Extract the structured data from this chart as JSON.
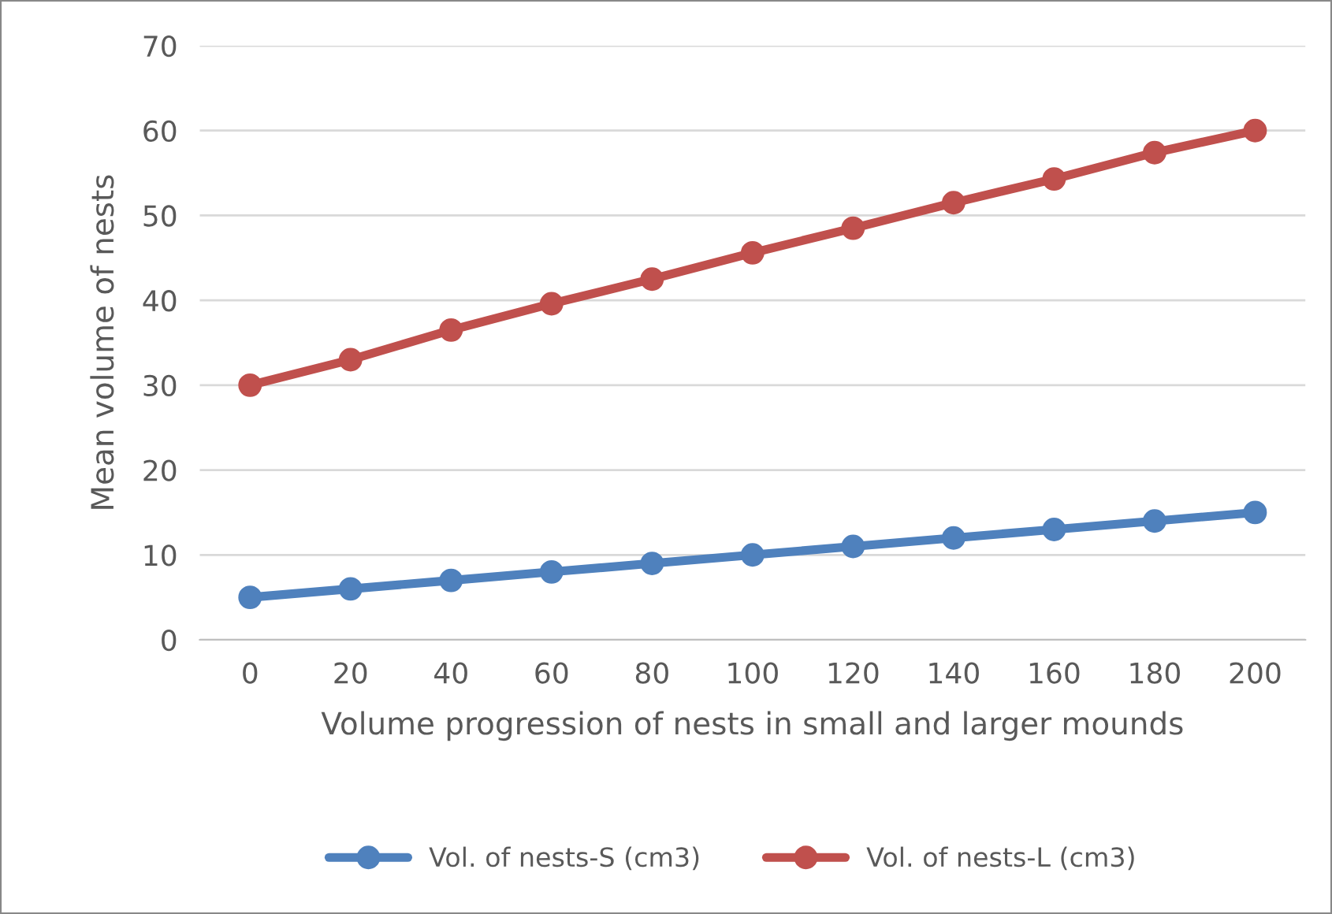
{
  "chart_data": {
    "type": "line",
    "xlabel": "Volume progression of nests in small and larger mounds",
    "ylabel": "Mean volume of nests",
    "categories": [
      "0",
      "20",
      "40",
      "60",
      "80",
      "100",
      "120",
      "140",
      "160",
      "180",
      "200"
    ],
    "series": [
      {
        "name": "Vol. of nests-S (cm3)",
        "color": "#4f81bd",
        "values": [
          5,
          6,
          7,
          8,
          9,
          10,
          11,
          12,
          13,
          14,
          15
        ]
      },
      {
        "name": "Vol. of nests-L (cm3)",
        "color": "#c0504d",
        "values": [
          30,
          33,
          36.5,
          39.6,
          42.5,
          45.6,
          48.5,
          51.5,
          54.3,
          57.4,
          60
        ]
      }
    ],
    "ylim": [
      0,
      70
    ],
    "yticks": [
      0,
      10,
      20,
      30,
      40,
      50,
      60,
      70
    ],
    "grid": "y",
    "legend": "bottom",
    "marker": "circle",
    "line_style": "solid"
  }
}
